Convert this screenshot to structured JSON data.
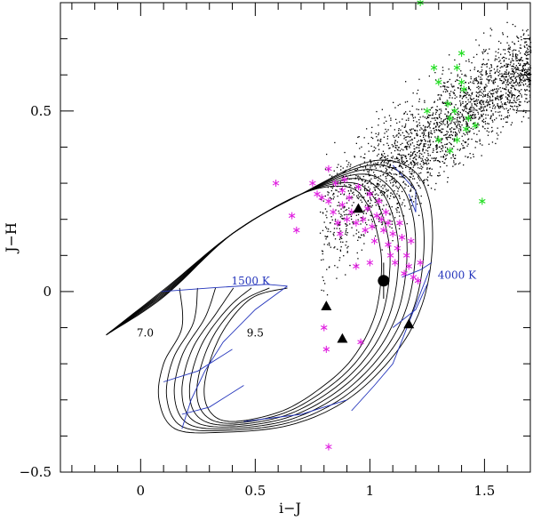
{
  "chart_data": {
    "type": "scatter",
    "title": "",
    "xlabel": "i−J",
    "ylabel": "J−H",
    "xlim": [
      -0.35,
      1.7
    ],
    "ylim": [
      -0.5,
      0.8
    ],
    "x_ticks": [
      {
        "value": 0,
        "label": "0"
      },
      {
        "value": 0.5,
        "label": "0.5"
      },
      {
        "value": 1,
        "label": "1"
      },
      {
        "value": 1.5,
        "label": "1.5"
      }
    ],
    "y_ticks": [
      {
        "value": -0.5,
        "label": "−0.5"
      },
      {
        "value": 0,
        "label": "0"
      },
      {
        "value": 0.5,
        "label": "0.5"
      }
    ],
    "annotations": [
      {
        "text": "1500 K",
        "x": 0.48,
        "y": 0.02,
        "color": "#2233bb"
      },
      {
        "text": "4000 K",
        "x": 1.38,
        "y": 0.035,
        "color": "#2233bb"
      },
      {
        "text": "7.0",
        "x": 0.02,
        "y": -0.125,
        "color": "#000000"
      },
      {
        "text": "9.5",
        "x": 0.5,
        "y": -0.125,
        "color": "#000000"
      }
    ],
    "series": [
      {
        "name": "field stars",
        "marker": "dot",
        "color": "#000000",
        "description": "dense cloud of field stars along the reddening band from (0.8, 0.2) to (1.7, 0.65)"
      },
      {
        "name": "magenta stars",
        "marker": "asterisk",
        "color": "#e020e0",
        "points": [
          [
            0.59,
            0.3
          ],
          [
            0.66,
            0.21
          ],
          [
            0.68,
            0.17
          ],
          [
            0.75,
            0.3
          ],
          [
            0.77,
            0.27
          ],
          [
            0.79,
            0.26
          ],
          [
            0.82,
            0.25
          ],
          [
            0.82,
            0.34
          ],
          [
            0.85,
            0.3
          ],
          [
            0.84,
            0.22
          ],
          [
            0.86,
            0.19
          ],
          [
            0.87,
            0.16
          ],
          [
            0.88,
            0.24
          ],
          [
            0.88,
            0.28
          ],
          [
            0.89,
            0.31
          ],
          [
            0.9,
            0.2
          ],
          [
            0.91,
            0.26
          ],
          [
            0.92,
            0.22
          ],
          [
            0.94,
            0.19
          ],
          [
            0.95,
            0.29
          ],
          [
            0.97,
            0.2
          ],
          [
            0.98,
            0.17
          ],
          [
            0.99,
            0.23
          ],
          [
            1.0,
            0.27
          ],
          [
            1.01,
            0.18
          ],
          [
            1.02,
            0.14
          ],
          [
            1.03,
            0.21
          ],
          [
            1.04,
            0.25
          ],
          [
            1.05,
            0.2
          ],
          [
            1.06,
            0.17
          ],
          [
            1.07,
            0.22
          ],
          [
            1.08,
            0.13
          ],
          [
            1.08,
            0.19
          ],
          [
            1.09,
            0.1
          ],
          [
            1.1,
            0.16
          ],
          [
            1.11,
            0.08
          ],
          [
            1.12,
            0.12
          ],
          [
            1.13,
            0.19
          ],
          [
            1.14,
            0.15
          ],
          [
            1.15,
            0.05
          ],
          [
            1.16,
            0.1
          ],
          [
            1.17,
            0.07
          ],
          [
            1.18,
            0.14
          ],
          [
            1.19,
            0.04
          ],
          [
            1.21,
            0.03
          ],
          [
            1.22,
            0.08
          ],
          [
            0.94,
            0.07
          ],
          [
            1.0,
            0.08
          ],
          [
            0.8,
            -0.1
          ],
          [
            0.81,
            -0.16
          ],
          [
            0.96,
            -0.14
          ],
          [
            0.82,
            -0.43
          ]
        ]
      },
      {
        "name": "green stars",
        "marker": "asterisk",
        "color": "#22dd22",
        "points": [
          [
            1.22,
            0.8
          ],
          [
            1.25,
            0.5
          ],
          [
            1.28,
            0.62
          ],
          [
            1.3,
            0.42
          ],
          [
            1.3,
            0.58
          ],
          [
            1.34,
            0.52
          ],
          [
            1.35,
            0.48
          ],
          [
            1.35,
            0.39
          ],
          [
            1.37,
            0.5
          ],
          [
            1.38,
            0.42
          ],
          [
            1.38,
            0.62
          ],
          [
            1.4,
            0.66
          ],
          [
            1.4,
            0.58
          ],
          [
            1.41,
            0.56
          ],
          [
            1.42,
            0.45
          ],
          [
            1.43,
            0.48
          ],
          [
            1.46,
            0.46
          ],
          [
            1.49,
            0.25
          ]
        ]
      },
      {
        "name": "triangles",
        "marker": "triangle",
        "color": "#000000",
        "points": [
          [
            0.95,
            0.23
          ],
          [
            0.81,
            -0.04
          ],
          [
            0.88,
            -0.13
          ],
          [
            1.17,
            -0.09
          ]
        ]
      },
      {
        "name": "large dot",
        "marker": "circle",
        "color": "#000000",
        "points": [
          [
            1.06,
            0.03
          ]
        ]
      }
    ],
    "model_tracks": {
      "description": "model isochrone tracks: black curves fanning from (-0.15,-0.12) through a loop to (1.25,0.05); blue iso-temperature lines from 1500 K to 4000 K"
    }
  }
}
